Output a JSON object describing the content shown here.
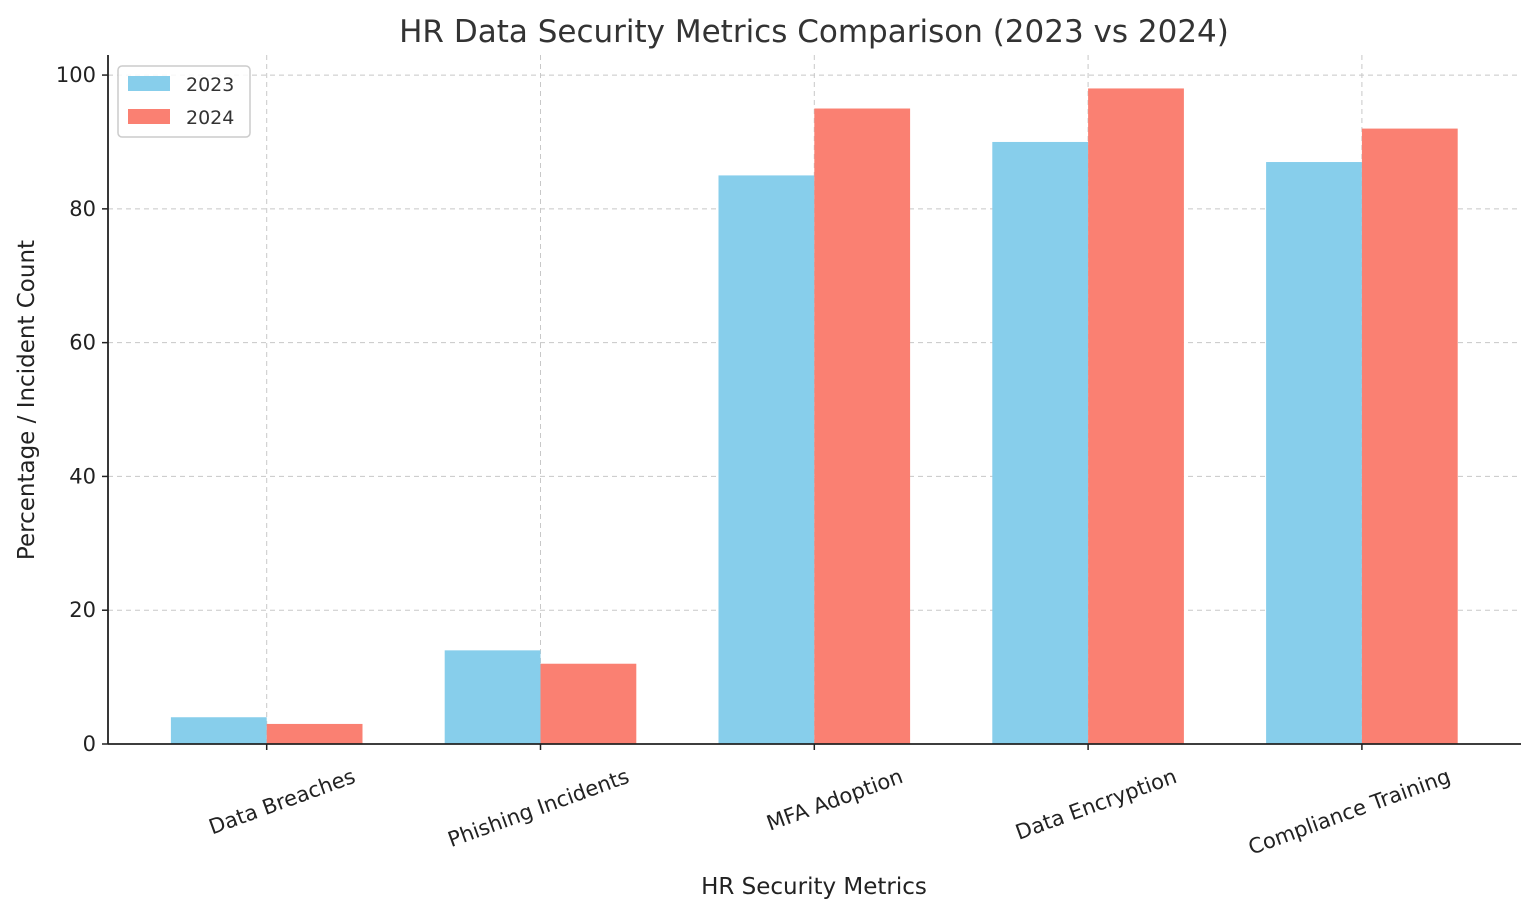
{
  "chart_data": {
    "type": "bar",
    "title": "HR Data Security Metrics Comparison (2023 vs 2024)",
    "xlabel": "HR Security Metrics",
    "ylabel": "Percentage / Incident Count",
    "categories": [
      "Data Breaches",
      "Phishing Incidents",
      "MFA Adoption",
      "Data Encryption",
      "Compliance Training"
    ],
    "series": [
      {
        "name": "2023",
        "color": "#87CEEB",
        "values": [
          4,
          14,
          85,
          90,
          87
        ]
      },
      {
        "name": "2024",
        "color": "#FA8072",
        "values": [
          3,
          12,
          95,
          98,
          92
        ]
      }
    ],
    "ylim": [
      0,
      103
    ],
    "yticks": [
      0,
      20,
      40,
      60,
      80,
      100
    ],
    "grid": true,
    "legend_position": "top-left"
  }
}
